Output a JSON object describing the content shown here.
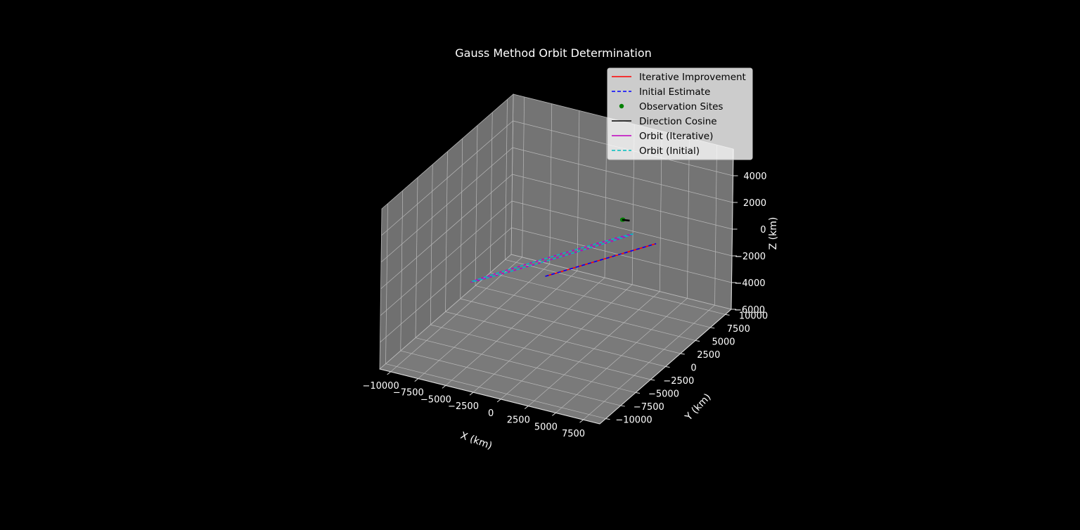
{
  "chart_data": {
    "type": "line",
    "projection": "3d",
    "title": "Gauss Method Orbit Determination",
    "xlabel": "X (km)",
    "ylabel": "Y (km)",
    "zlabel": "Z (km)",
    "xlim": [
      -11000,
      9000
    ],
    "ylim": [
      -11000,
      11000
    ],
    "zlim": [
      -6000,
      6000
    ],
    "x_ticks": [
      "−10000",
      "−7500",
      "−5000",
      "−2500",
      "0",
      "2500",
      "5000",
      "7500"
    ],
    "y_ticks": [
      "−10000",
      "−7500",
      "−5000",
      "−2500",
      "0",
      "2500",
      "5000",
      "7500",
      "10000"
    ],
    "z_ticks": [
      "−6000",
      "−4000",
      "−2000",
      "0",
      "2000",
      "4000"
    ],
    "grid": true,
    "legend_position": "top-right",
    "colors": {
      "background": "#000000",
      "pane": "#7a7a7a",
      "grid": "#b8b8b8",
      "iterative_improvement": "#ff0000",
      "initial_estimate": "#0000ff",
      "observation_sites": "#008000",
      "direction_cosine": "#000000",
      "orbit_iterative": "#bf00bf",
      "orbit_initial": "#00bfbf"
    },
    "series": [
      {
        "name": "Iterative Improvement",
        "style": "solid",
        "color": "#ff0000",
        "points": [
          [
            -2000,
            0,
            -1500
          ],
          [
            8000,
            0,
            3000
          ]
        ]
      },
      {
        "name": "Initial Estimate",
        "style": "dashed",
        "color": "#0000ff",
        "points": [
          [
            -2000,
            0,
            -1500
          ],
          [
            8000,
            0,
            3000
          ]
        ]
      },
      {
        "name": "Observation Sites",
        "style": "marker",
        "color": "#008000",
        "points": [
          [
            4900,
            0,
            4150
          ],
          [
            4920,
            50,
            4140
          ],
          [
            4940,
            100,
            4130
          ]
        ]
      },
      {
        "name": "Direction Cosine",
        "style": "solid",
        "color": "#000000",
        "points": [
          [
            4900,
            0,
            4150
          ],
          [
            5500,
            150,
            4150
          ]
        ]
      },
      {
        "name": "Orbit (Iterative)",
        "style": "solid",
        "color": "#bf00bf",
        "orbit": {
          "center": [
            -1400,
            0,
            0
          ],
          "a": 8000,
          "b": 400,
          "dir_a": [
            0.91,
            0,
            0.41
          ],
          "dir_b": [
            0,
            1,
            0
          ]
        }
      },
      {
        "name": "Orbit (Initial)",
        "style": "dashed",
        "color": "#00bfbf",
        "orbit": {
          "center": [
            -1400,
            0,
            0
          ],
          "a": 8000,
          "b": 400,
          "dir_a": [
            0.91,
            0,
            0.41
          ],
          "dir_b": [
            0,
            1,
            0
          ]
        }
      }
    ]
  }
}
